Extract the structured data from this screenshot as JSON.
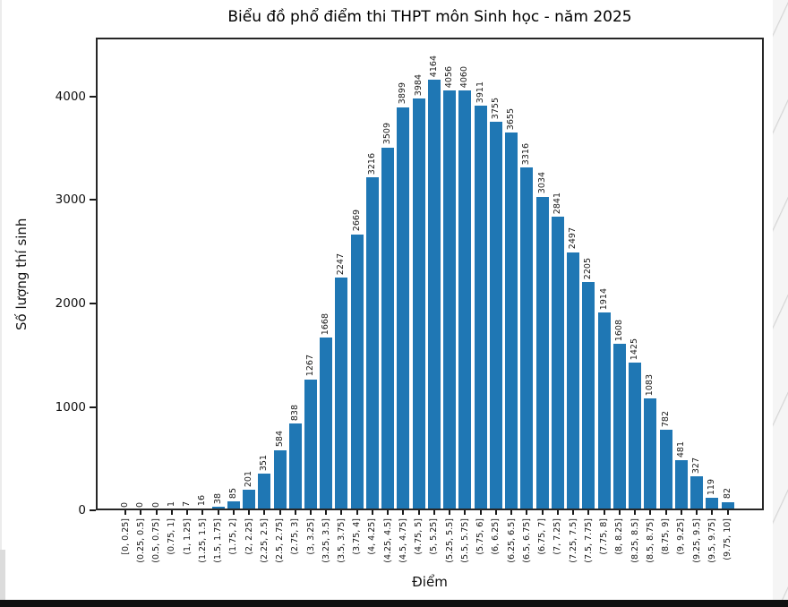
{
  "chart_data": {
    "type": "bar",
    "title": "Biểu đồ phổ điểm thi THPT môn Sinh học - năm 2025",
    "xlabel": "Điểm",
    "ylabel": "Số lượng thí sinh",
    "categories": [
      "[0, 0.25]",
      "(0.25, 0.5]",
      "(0.5, 0.75]",
      "(0.75, 1]",
      "(1, 1.25]",
      "(1.25, 1.5]",
      "(1.5, 1.75]",
      "(1.75, 2]",
      "(2, 2.25]",
      "(2.25, 2.5]",
      "(2.5, 2.75]",
      "(2.75, 3]",
      "(3, 3.25]",
      "(3.25, 3.5]",
      "(3.5, 3.75]",
      "(3.75, 4]",
      "(4, 4.25]",
      "(4.25, 4.5]",
      "(4.5, 4.75]",
      "(4.75, 5]",
      "(5, 5.25]",
      "(5.25, 5.5]",
      "(5.5, 5.75]",
      "(5.75, 6]",
      "(6, 6.25]",
      "(6.25, 6.5]",
      "(6.5, 6.75]",
      "(6.75, 7]",
      "(7, 7.25]",
      "(7.25, 7.5]",
      "(7.5, 7.75]",
      "(7.75, 8]",
      "(8, 8.25]",
      "(8.25, 8.5]",
      "(8.5, 8.75]",
      "(8.75, 9]",
      "(9, 9.25]",
      "(9.25, 9.5]",
      "(9.5, 9.75]",
      "(9.75, 10]"
    ],
    "values": [
      0,
      0,
      0,
      1,
      7,
      16,
      38,
      85,
      201,
      351,
      584,
      838,
      1267,
      1668,
      2247,
      2669,
      3216,
      3509,
      3899,
      3984,
      4164,
      4056,
      4060,
      3911,
      3755,
      3655,
      3316,
      3034,
      2841,
      2497,
      2205,
      1914,
      1608,
      1425,
      1083,
      782,
      481,
      327,
      119,
      82
    ],
    "yticks": [
      0,
      1000,
      2000,
      3000,
      4000
    ],
    "ytick_labels": [
      "0",
      "1000",
      "2000",
      "3000",
      "4000"
    ],
    "ylim": [
      0,
      4570
    ],
    "grid": false,
    "legend": null,
    "bar_color": "#1f77b4",
    "value_labels_shown": true,
    "value_label_rotation": 90,
    "xtick_label_rotation": 90
  },
  "colors": {
    "bar": "#1f77b4",
    "axis": "#262626",
    "text": "#111111",
    "background": "#ffffff",
    "bottom_bar": "#101010",
    "watermark_strip": "#f5f5f5"
  }
}
